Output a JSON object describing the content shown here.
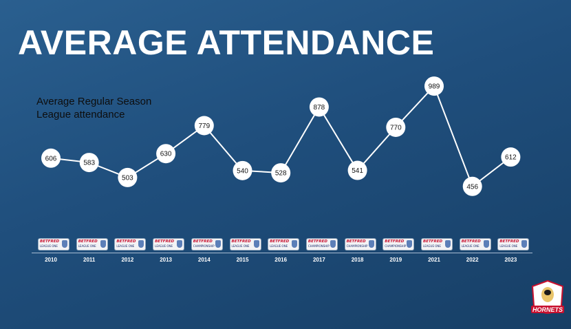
{
  "title": "AVERAGE ATTENDANCE",
  "chart_data": {
    "type": "line",
    "title": "Average Regular Season League attendance",
    "subtitle_lines": [
      "Average Regular Season",
      "League attendance"
    ],
    "categories": [
      "2010",
      "2011",
      "2012",
      "2013",
      "2014",
      "2015",
      "2016",
      "2017",
      "2018",
      "2019",
      "2021",
      "2022",
      "2023"
    ],
    "series": [
      {
        "values": [
          606,
          583,
          503,
          630,
          779,
          540,
          528,
          878,
          541,
          770,
          989,
          456,
          612
        ]
      }
    ],
    "league_badges": [
      "LEAGUE ONE",
      "LEAGUE ONE",
      "LEAGUE ONE",
      "LEAGUE ONE",
      "CHAMPIONSHIP",
      "LEAGUE ONE",
      "LEAGUE ONE",
      "CHAMPIONSHIP",
      "CHAMPIONSHIP",
      "CHAMPIONSHIP",
      "LEAGUE ONE",
      "LEAGUE ONE",
      "LEAGUE ONE"
    ],
    "badge_brand": "BETFRED",
    "line_color": "#ffffff",
    "marker_color": "#ffffff",
    "grid": false
  },
  "logo_text": "HORNETS"
}
